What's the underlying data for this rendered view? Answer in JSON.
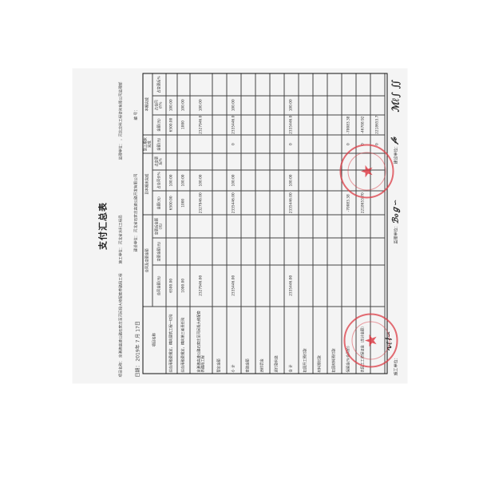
{
  "document": {
    "title": "支付汇总表",
    "project_name": "项目名称：  京港澳高速公路石家庄至河间段大修配套养路段工程",
    "contractor": "施工单位：  河北省水利工程局",
    "supervisor": "监理单位：  ，河北交科工程咨询有限公司监理部",
    "date": "日期：  2019年  7  月 17日",
    "owner": "建设单位：  河北省石家庄高速公路开发有限公司",
    "number": "编    号："
  },
  "table": {
    "group_headers": [
      "项目名称",
      "合同及变更金额",
      "到本期末完成",
      "到上期末完成",
      "本期完成"
    ],
    "sub_headers": [
      "合同金额(元)",
      "变更金额(元)",
      "变更后金额(元)",
      "金额(元)",
      "占合同价%",
      "占变更后%",
      "金额(元)",
      "金额(元)",
      "占合同价%",
      "占变更后%"
    ],
    "rows": [
      [
        "综合用税费规定，横向建筑工程一切险",
        "6500.00",
        "",
        "",
        "6500.00",
        "100.00",
        "",
        "",
        "6500.00",
        "100.00",
        ""
      ],
      [
        "综合用税费规定，横向第三者责任险",
        "1000.00",
        "",
        "",
        "1000",
        "100.00",
        "",
        "",
        "1000",
        "100.00",
        ""
      ],
      [
        "京港澳高速公路石家庄至河间段大修配套养路段工程",
        "2327946.00",
        "",
        "",
        "2327946.00",
        "100.00",
        "",
        "",
        "2327946.00",
        "100.00",
        ""
      ],
      [
        "暂定金额",
        "",
        "",
        "",
        "",
        "",
        "",
        "",
        "",
        "",
        ""
      ],
      [
        "小    计",
        "2335446.00",
        "",
        "",
        "2335446.00",
        "100.00",
        "",
        "0",
        "2335446.00",
        "100.00",
        ""
      ],
      [
        "索赔金额",
        "",
        "",
        "",
        "",
        "",
        "",
        "",
        "",
        "",
        ""
      ],
      [
        "违约罚金",
        "",
        "",
        "",
        "",
        "",
        "",
        "",
        "",
        "",
        ""
      ],
      [
        "迟付款利息",
        "",
        "",
        "",
        "",
        "",
        "",
        "",
        "",
        "",
        ""
      ],
      [
        "合    计",
        "2335446.00",
        "",
        "",
        "2335446.00",
        "100.00",
        "",
        "0",
        "2335446.00",
        "100.00",
        ""
      ],
      [
        "扣回开工预付款",
        "",
        "",
        "",
        "",
        "",
        "",
        "",
        "",
        "",
        ""
      ],
      [
        "材料预付款",
        "",
        "",
        "",
        "",
        "",
        "",
        "",
        "",
        "",
        ""
      ],
      [
        "扣回材料预付款",
        "",
        "",
        "",
        "",
        "",
        "",
        "",
        "",
        "",
        ""
      ],
      [
        "保留金(%合同价)",
        "",
        "",
        "",
        "-70083.38",
        "",
        "",
        "0",
        "-70083.38",
        "",
        ""
      ],
      [
        "农民工工资保证金（总计金额）",
        "",
        "",
        "",
        "2218653.70",
        "",
        "",
        "0",
        "-46708.92",
        "",
        ""
      ],
      [
        "",
        "",
        "",
        "",
        "",
        "",
        "",
        "0",
        "2218653.70",
        "",
        ""
      ]
    ]
  },
  "signatures": {
    "contractor": "施工单位：",
    "supervisor": "监理单位：",
    "owner": "建设单位："
  },
  "colors": {
    "stamp": "#dc3c46",
    "ink": "#222222",
    "paper": "#f4f4f4"
  }
}
